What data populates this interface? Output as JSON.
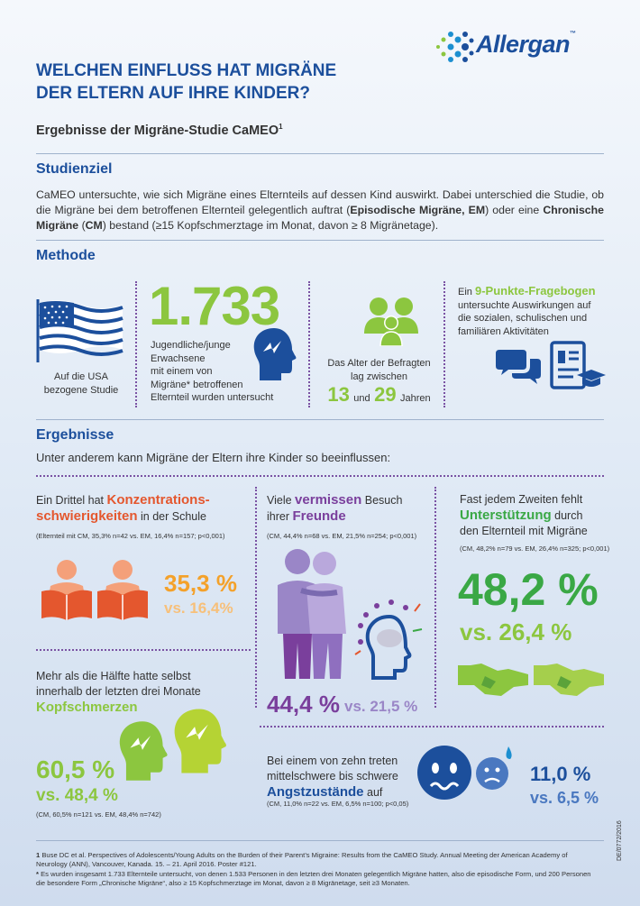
{
  "logo": {
    "text": "Allergan",
    "tm": "™"
  },
  "title": [
    "WELCHEN EINFLUSS HAT MIGRÄNE",
    "DER ELTERN AUF IHRE KINDER?"
  ],
  "subtitle": {
    "text": "Ergebnisse der Migräne-Studie CaMEO",
    "sup": "1"
  },
  "studienziel": {
    "heading": "Studienziel",
    "p1": "CaMEO untersuchte, wie sich Migräne eines Elternteils auf dessen Kind auswirkt. Dabei unterschied die Studie, ob die Migräne bei dem betroffenen Elternteil gelegentlich auftrat (",
    "em_label": "Episodische Migräne, EM",
    "p2": ") oder eine ",
    "cm_label": "Chronische Migräne",
    "p3": " (",
    "cm_abbr": "CM",
    "p4": ") bestand (≥15 Kopfschmerztage im Monat, davon ≥ 8 Migränetage)."
  },
  "methode": {
    "heading": "Methode",
    "usa": [
      "Auf die USA",
      "bezogene Studie"
    ],
    "count": "1.733",
    "count_text": [
      "Jugendliche/junge",
      "Erwachsene",
      "mit einem von",
      "Migräne* betroffenen",
      "Elternteil wurden untersucht"
    ],
    "age_text": [
      "Das Alter der Befragten",
      "lag zwischen"
    ],
    "age_min": "13",
    "age_und": "und",
    "age_max": "29",
    "age_unit": "Jahren",
    "fb_ein": "Ein ",
    "fb_title": "9-Punkte-Fragebogen",
    "fb_text": [
      "untersuchte Auswirkungen auf",
      "die sozialen, schulischen und",
      "familiären Aktivitäten"
    ]
  },
  "ergebnisse": {
    "heading": "Ergebnisse",
    "intro": "Unter anderem kann Migräne der Eltern ihre Kinder so beeinflussen:"
  },
  "konz": {
    "pre": "Ein Drittel hat ",
    "hl1": "Konzentrations-",
    "hl2": "schwierigkeiten",
    "post": " in der Schule",
    "stat": "(Elternteil mit CM, 35,3% n=42 vs. EM, 16,4% n=157; p<0,001)",
    "main": "35,3 %",
    "vs": "vs. 16,4%"
  },
  "kopf": {
    "l1": "Mehr als die Hälfte hatte selbst",
    "l2": "innerhalb der letzten drei Monate",
    "hl": "Kopfschmerzen",
    "main": "60,5 %",
    "vs": "vs. 48,4 %",
    "stat": "(CM, 60,5% n=121 vs. EM, 48,4% n=742)"
  },
  "freunde": {
    "pre": "Viele ",
    "hl1": "vermissen",
    "mid": " Besuch",
    "l2pre": "ihrer ",
    "hl2": "Freunde",
    "stat": "(CM, 44,4% n=68 vs. EM, 21,5% n=254; p<0,001)",
    "main": "44,4 %",
    "vs": "vs. 21,5 %"
  },
  "unter": {
    "l1": "Fast jedem Zweiten fehlt",
    "hl": "Unterstützung",
    "post": " durch",
    "l3": "den Elternteil mit Migräne",
    "stat": "(CM, 48,2% n=79 vs. EM, 26,4% n=325; p<0,001)",
    "main": "48,2 %",
    "vs": "vs. 26,4 %"
  },
  "angst": {
    "l1": "Bei einem von zehn treten",
    "l2": "mittelschwere bis schwere",
    "hl": "Angstzustände",
    "post": " auf",
    "stat": "(CM, 11,0% n=22 vs. EM, 6,5% n=100; p<0,05)",
    "main": "11,0 %",
    "vs": "vs. 6,5 %"
  },
  "footnotes": {
    "n1": "1",
    "f1": "Buse DC et al. Perspectives of Adolescents/Young Adults on the Burden of their Parent’s Migraine: Results from the CaMEO Study. Annual Meeting der American Academy of Neurology (ANN), Vancouver, Kanada. 15. – 21. April 2016. Poster #121.",
    "n2": "*",
    "f2": "Es wurden insgesamt 1.733 Elternteile untersucht, von denen 1.533 Personen in den letzten drei Monaten gelegentlich Migräne hatten, also die episodische Form, und 200 Personen die besondere Form „Chronische Migräne“, also ≥ 15 Kopfschmerztage im Monat, davon ≥ 8 Migränetage, seit ≥3 Monaten."
  },
  "code": "DE/0772/2016",
  "colors": {
    "blue": "#1c4f9c",
    "green": "#8cc63f",
    "purple": "#7a3f9c",
    "orange": "#f4a12a",
    "darkgreen": "#3aa845"
  }
}
